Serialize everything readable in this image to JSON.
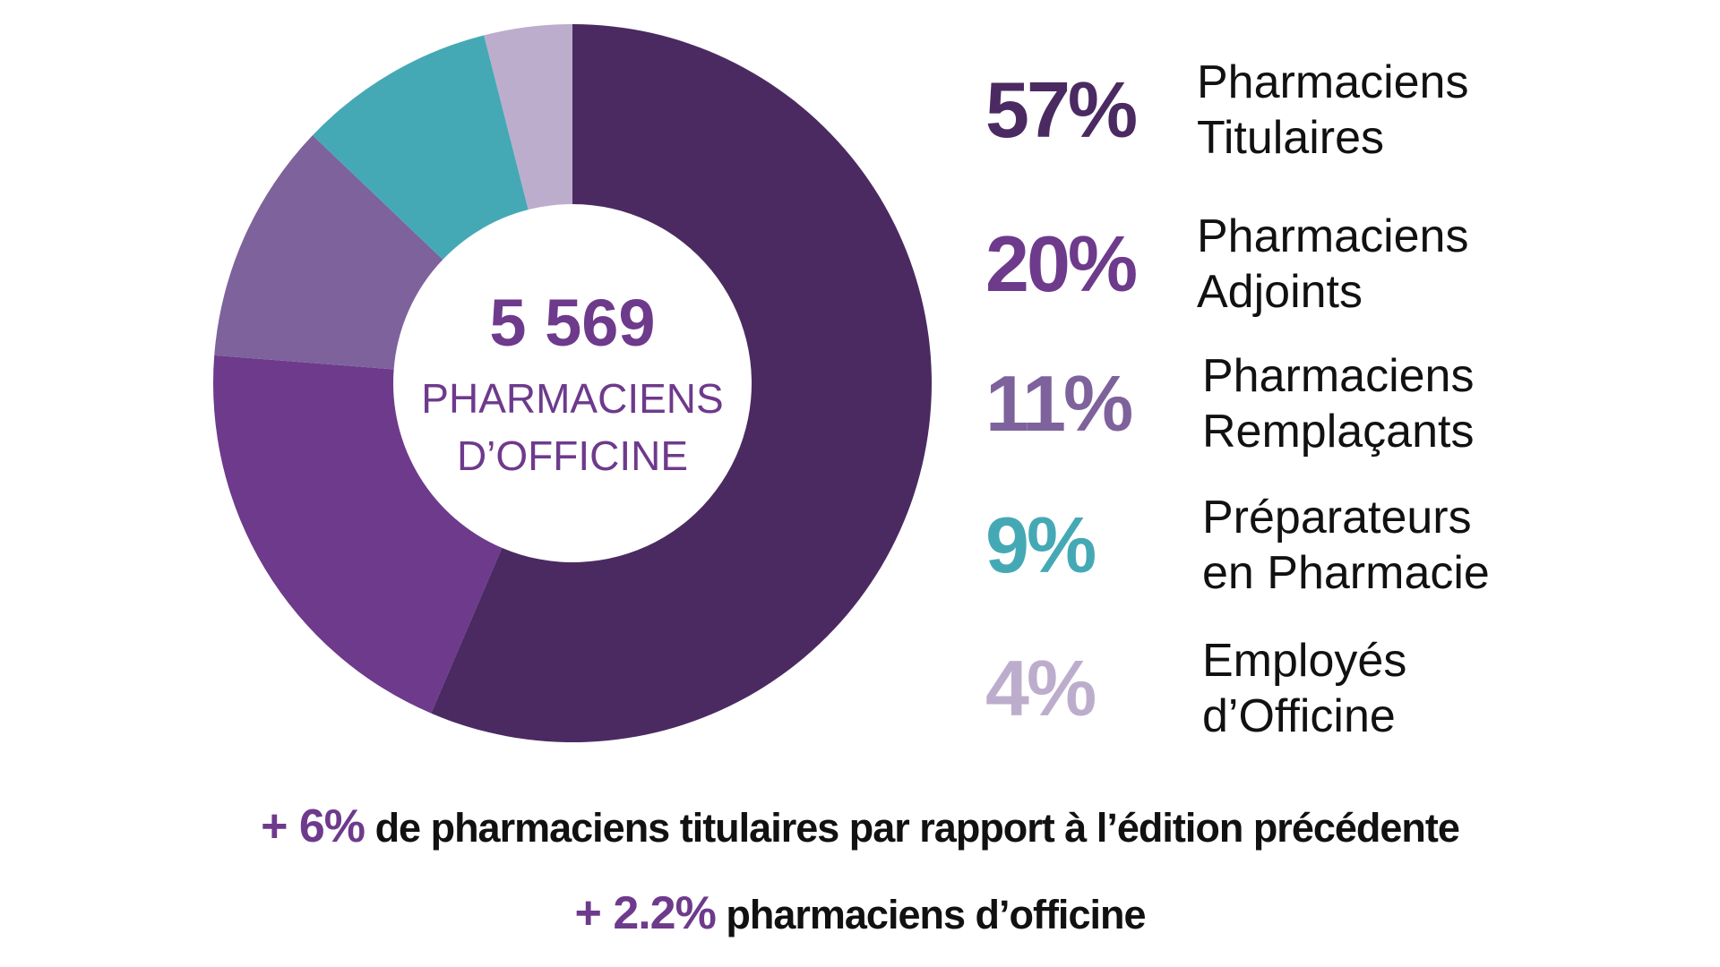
{
  "chart_data": {
    "type": "pie",
    "variant": "donut",
    "center_total": "5 569",
    "center_label_lines": [
      "PHARMACIENS",
      "D’OFFICINE"
    ],
    "slices": [
      {
        "value": 57,
        "pct_label": "57%",
        "label_lines": [
          "Pharmaciens",
          "Titulaires"
        ],
        "color": "#4B2A62"
      },
      {
        "value": 20,
        "pct_label": "20%",
        "label_lines": [
          "Pharmaciens",
          "Adjoints"
        ],
        "color": "#6E3A8C"
      },
      {
        "value": 11,
        "pct_label": "11%",
        "label_lines": [
          "Pharmaciens",
          "Remplaçants"
        ],
        "color": "#7E629B"
      },
      {
        "value": 9,
        "pct_label": "9%",
        "label_lines": [
          "Préparateurs",
          "en Pharmacie"
        ],
        "color": "#45A9B5"
      },
      {
        "value": 4,
        "pct_label": "4%",
        "label_lines": [
          "Employés",
          "d’Officine"
        ],
        "color": "#BDADCD"
      }
    ],
    "legend_placement": "right"
  },
  "footer": [
    {
      "highlight": "+ 6%",
      "text": "de pharmaciens titulaires par rapport à l’édition précédente"
    },
    {
      "highlight": "+ 2.2%",
      "text": "pharmaciens d’officine"
    }
  ]
}
